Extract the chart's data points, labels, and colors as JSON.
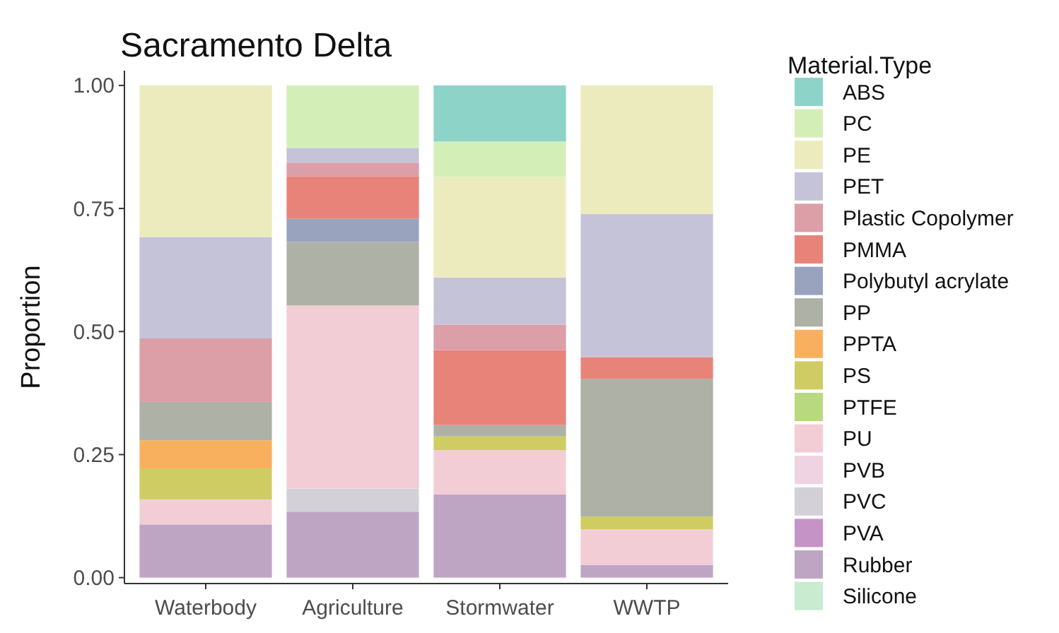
{
  "chart_data": {
    "type": "bar",
    "title": "Sacramento Delta",
    "ylabel": "Proportion",
    "legend_title": "Material.Type",
    "legend": "right",
    "stacked": true,
    "categories": [
      "Waterbody",
      "Agriculture",
      "Stormwater",
      "WWTP"
    ],
    "ylim": [
      -0.012,
      1.03
    ],
    "yticks": [
      {
        "value": 0,
        "label": "0.00"
      },
      {
        "value": 0.25,
        "label": "0.25"
      },
      {
        "value": 0.5,
        "label": "0.50"
      },
      {
        "value": 0.75,
        "label": "0.75"
      },
      {
        "value": 1,
        "label": "1.00"
      }
    ],
    "series": [
      {
        "name": "Silicone",
        "color": "#c9ebd0",
        "values": [
          null,
          null,
          null,
          null
        ]
      },
      {
        "name": "Rubber",
        "color": "#bfa5c4",
        "values": [
          0.108,
          0.134,
          0.169,
          0.026
        ]
      },
      {
        "name": "PVA",
        "color": "#c693c6",
        "values": [
          null,
          null,
          null,
          null
        ]
      },
      {
        "name": "PVC",
        "color": "#d4d0d8",
        "values": [
          null,
          0.047,
          null,
          null
        ]
      },
      {
        "name": "PVB",
        "color": "#efd3e3",
        "values": [
          null,
          null,
          null,
          null
        ]
      },
      {
        "name": "PU",
        "color": "#f2cdd5",
        "values": [
          0.051,
          0.372,
          0.09,
          0.072
        ]
      },
      {
        "name": "PTFE",
        "color": "#b8d97e",
        "values": [
          null,
          null,
          null,
          null
        ]
      },
      {
        "name": "PS",
        "color": "#cfcc63",
        "values": [
          0.063,
          null,
          0.028,
          0.026
        ]
      },
      {
        "name": "PPTA",
        "color": "#f9b05e",
        "values": [
          0.057,
          null,
          null,
          null
        ]
      },
      {
        "name": "PP",
        "color": "#adb1a6",
        "values": [
          0.078,
          0.129,
          0.023,
          0.28
        ]
      },
      {
        "name": "Polybutyl acrylate",
        "color": "#99a3be",
        "values": [
          null,
          0.047,
          null,
          null
        ]
      },
      {
        "name": "PMMA",
        "color": "#e8837a",
        "values": [
          null,
          0.086,
          0.152,
          0.044
        ]
      },
      {
        "name": "Plastic Copolymer",
        "color": "#dc9ea7",
        "values": [
          0.129,
          0.028,
          0.052,
          null
        ]
      },
      {
        "name": "PET",
        "color": "#c5c3d8",
        "values": [
          0.206,
          0.03,
          0.096,
          0.291
        ]
      },
      {
        "name": "PE",
        "color": "#ecebbd",
        "values": [
          0.308,
          null,
          0.204,
          0.261
        ]
      },
      {
        "name": "PC",
        "color": "#d4eeb8",
        "values": [
          null,
          0.127,
          0.072,
          null
        ]
      },
      {
        "name": "ABS",
        "color": "#8dd3c7",
        "values": [
          null,
          null,
          0.114,
          null
        ]
      }
    ]
  }
}
